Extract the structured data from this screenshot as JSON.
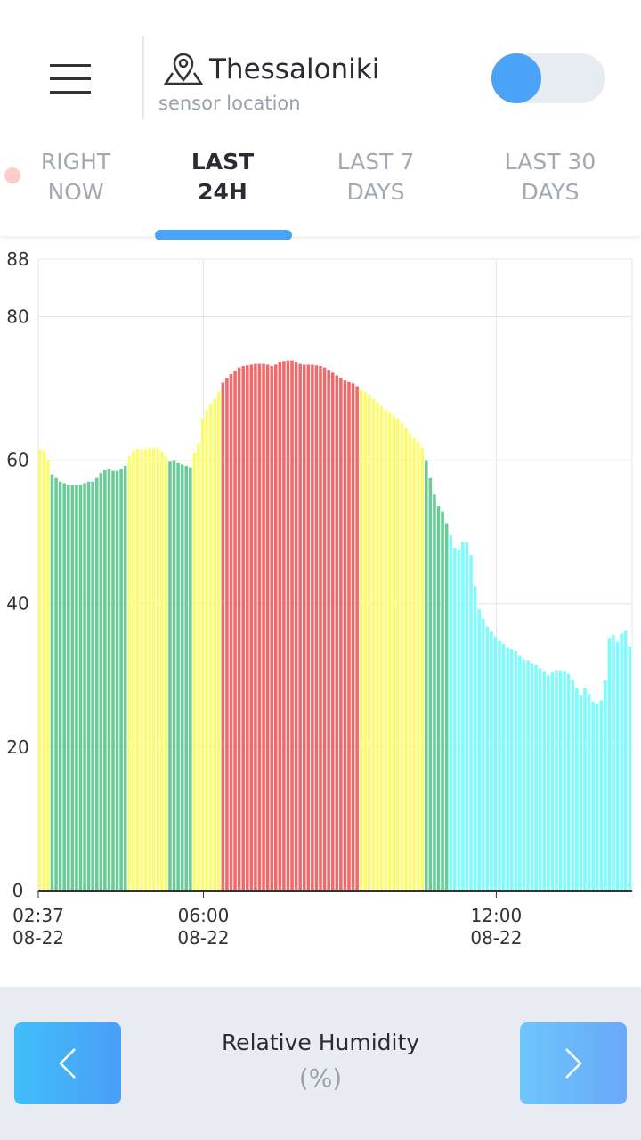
{
  "header": {
    "city": "Thessaloniki",
    "subtitle": "sensor location"
  },
  "tabs": [
    {
      "label": [
        "RIGHT",
        "NOW"
      ]
    },
    {
      "label": [
        "LAST",
        "24H"
      ]
    },
    {
      "label": [
        "LAST 7",
        "DAYS"
      ]
    },
    {
      "label": [
        "LAST 30",
        "DAYS"
      ]
    }
  ],
  "active_tab": 1,
  "chart_data": {
    "type": "bar",
    "x": [
      "08-22 02:37",
      "08-22 02:42",
      "08-22 02:47",
      "08-22 02:52",
      "08-22 02:57",
      "08-22 03:02",
      "08-22 03:07",
      "08-22 03:12",
      "08-22 03:17",
      "08-22 03:22",
      "08-22 03:27",
      "08-22 03:32",
      "08-22 03:37",
      "08-22 03:42",
      "08-22 03:47",
      "08-22 03:52",
      "08-22 03:57",
      "08-22 04:02",
      "08-22 04:07",
      "08-22 04:12",
      "08-22 04:17",
      "08-22 04:22",
      "08-22 04:27",
      "08-22 04:32",
      "08-22 04:37",
      "08-22 04:42",
      "08-22 04:47",
      "08-22 04:52",
      "08-22 04:57",
      "08-22 05:02",
      "08-22 05:07",
      "08-22 05:12",
      "08-22 05:17",
      "08-22 05:22",
      "08-22 05:27",
      "08-22 05:32",
      "08-22 05:37",
      "08-22 05:42",
      "08-22 05:47",
      "08-22 05:52",
      "08-22 05:57",
      "08-22 06:02",
      "08-22 06:07",
      "08-22 06:12",
      "08-22 06:17",
      "08-22 06:22",
      "08-22 06:27",
      "08-22 06:32",
      "08-22 06:37",
      "08-22 06:42",
      "08-22 06:47",
      "08-22 06:52",
      "08-22 06:57",
      "08-22 07:02",
      "08-22 07:07",
      "08-22 07:12",
      "08-22 07:17",
      "08-22 07:22",
      "08-22 07:27",
      "08-22 07:32",
      "08-22 07:37",
      "08-22 07:42",
      "08-22 07:47",
      "08-22 07:52",
      "08-22 07:57",
      "08-22 08:02",
      "08-22 08:07",
      "08-22 08:12",
      "08-22 08:17",
      "08-22 08:22",
      "08-22 08:27",
      "08-22 08:32",
      "08-22 08:37",
      "08-22 08:42",
      "08-22 08:47",
      "08-22 08:52",
      "08-22 08:57",
      "08-22 09:02",
      "08-22 09:07",
      "08-22 09:12",
      "08-22 09:17",
      "08-22 09:22",
      "08-22 09:27",
      "08-22 09:32",
      "08-22 09:37",
      "08-22 09:42",
      "08-22 09:47",
      "08-22 09:52",
      "08-22 09:57",
      "08-22 10:02",
      "08-22 10:07",
      "08-22 10:12",
      "08-22 10:17",
      "08-22 10:22",
      "08-22 10:27",
      "08-22 10:32",
      "08-22 10:37",
      "08-22 10:42",
      "08-22 10:47",
      "08-22 10:52",
      "08-22 10:57",
      "08-22 11:02",
      "08-22 11:07",
      "08-22 11:12",
      "08-22 11:17",
      "08-22 11:22",
      "08-22 11:27",
      "08-22 11:32",
      "08-22 11:37",
      "08-22 11:42",
      "08-22 11:47",
      "08-22 11:52",
      "08-22 11:57",
      "08-22 12:02",
      "08-22 12:07",
      "08-22 12:12",
      "08-22 12:17",
      "08-22 12:22",
      "08-22 12:27",
      "08-22 12:32",
      "08-22 12:37",
      "08-22 12:42",
      "08-22 12:47",
      "08-22 12:52",
      "08-22 12:57",
      "08-22 13:02",
      "08-22 13:07",
      "08-22 13:12",
      "08-22 13:17",
      "08-22 13:22",
      "08-22 13:27",
      "08-22 13:32",
      "08-22 13:37",
      "08-22 13:42",
      "08-22 13:47",
      "08-22 13:52",
      "08-22 13:57",
      "08-22 14:02",
      "08-22 14:07",
      "08-22 14:12",
      "08-22 14:17",
      "08-22 14:22",
      "08-22 14:27",
      "08-22 14:32",
      "08-22 14:37",
      "08-22 14:42"
    ],
    "values": [
      61.5,
      61.3,
      60,
      58,
      57.5,
      57,
      56.8,
      56.6,
      56.6,
      56.6,
      56.6,
      56.8,
      57,
      57,
      57.5,
      58.2,
      58.6,
      58.7,
      58.5,
      58.5,
      58.7,
      59.2,
      60.6,
      61.3,
      61.6,
      61.5,
      61.5,
      61.7,
      61.7,
      61.6,
      61.2,
      60.5,
      59.8,
      59.9,
      59.6,
      59.4,
      59.2,
      59,
      61,
      62.3,
      65.8,
      67,
      67.8,
      68.6,
      69.6,
      70.8,
      71.5,
      72,
      72.5,
      72.9,
      73.1,
      73.2,
      73.3,
      73.4,
      73.4,
      73.4,
      73.3,
      73.1,
      73.3,
      73.6,
      73.8,
      73.9,
      73.9,
      73.6,
      73.4,
      73.3,
      73.3,
      73.3,
      73.2,
      73.1,
      72.9,
      72.6,
      72.2,
      71.8,
      71.5,
      71.1,
      70.9,
      70.7,
      70.3,
      69.8,
      69.5,
      69.1,
      68.6,
      68,
      67.5,
      67,
      66.6,
      66.2,
      65.8,
      65.2,
      64.5,
      63.7,
      63,
      62.5,
      61.7,
      59.9,
      57.5,
      55.2,
      53.6,
      52.8,
      51.2,
      49.5,
      47.8,
      47.5,
      48.6,
      48.6,
      46.8,
      42.4,
      39.2,
      37.9,
      36.8,
      36.1,
      35.4,
      34.8,
      34.4,
      33.8,
      33.6,
      33.4,
      32.7,
      32.2,
      32.1,
      31.7,
      31.4,
      31,
      30.6,
      30,
      30.4,
      30.7,
      30.7,
      30.6,
      30.2,
      29.3,
      28.2,
      27.3,
      28.3,
      27.4,
      26.3,
      26.1,
      26.5,
      29.3,
      35.2,
      35.6,
      34.6,
      35.8,
      36.3,
      34
    ],
    "color_thresholds": [
      {
        "min": 0,
        "color": "#80fbfb"
      },
      {
        "min": 50,
        "color": "#6acb96"
      },
      {
        "min": 60,
        "color": "#fbfb70"
      },
      {
        "min": 70,
        "color": "#ef6b6b"
      }
    ],
    "xlim": [
      "08-22 02:37",
      "08-22 14:47"
    ],
    "xticks": [
      {
        "value": "08-22 02:37",
        "label": [
          "02:37",
          "08-22"
        ]
      },
      {
        "value": "08-22 06:00",
        "label": [
          "06:00",
          "08-22"
        ]
      },
      {
        "value": "08-22 12:00",
        "label": [
          "12:00",
          "08-22"
        ]
      }
    ],
    "ylim": [
      0,
      88
    ],
    "yticks": [
      0,
      20,
      40,
      60,
      80,
      88
    ],
    "grid": true,
    "title": "Relative Humidity",
    "unit": "(%)"
  }
}
